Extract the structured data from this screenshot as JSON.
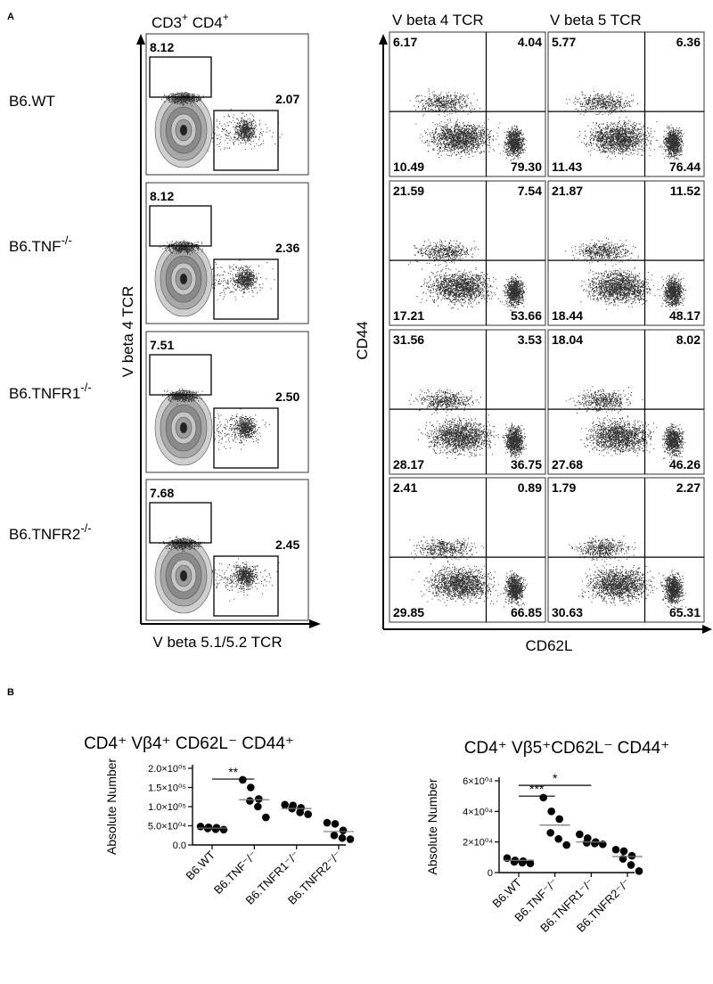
{
  "panel_a": {
    "letter": "A",
    "title_main": "CD3",
    "title_sup": "+",
    "title_main2": " CD4",
    "title_sup2": "+",
    "col_titles": [
      "V beta 4 TCR",
      "V beta 5 TCR"
    ],
    "row_labels": [
      {
        "base": "B6.WT",
        "sup": ""
      },
      {
        "base": "B6.TNF",
        "sup": "-/-"
      },
      {
        "base": "B6.TNFR1",
        "sup": "-/-"
      },
      {
        "base": "B6.TNFR2",
        "sup": "-/-"
      }
    ],
    "left_ylabel": "V beta 4 TCR",
    "left_xlabel": "V beta 5.1/5.2 TCR",
    "right_ylabel": "CD44",
    "right_xlabel": "CD62L",
    "gate_values": [
      {
        "upper": "8.12",
        "right": "2.07"
      },
      {
        "upper": "8.12",
        "right": "2.36"
      },
      {
        "upper": "7.51",
        "right": "2.50"
      },
      {
        "upper": "7.68",
        "right": "2.45"
      }
    ],
    "quadrants": [
      [
        {
          "ul": "6.17",
          "ur": "4.04",
          "ll": "10.49",
          "lr": "79.30"
        },
        {
          "ul": "5.77",
          "ur": "6.36",
          "ll": "11.43",
          "lr": "76.44"
        }
      ],
      [
        {
          "ul": "21.59",
          "ur": "7.54",
          "ll": "17.21",
          "lr": "53.66"
        },
        {
          "ul": "21.87",
          "ur": "11.52",
          "ll": "18.44",
          "lr": "48.17"
        }
      ],
      [
        {
          "ul": "31.56",
          "ur": "3.53",
          "ll": "28.17",
          "lr": "36.75"
        },
        {
          "ul": "18.04",
          "ur": "8.02",
          "ll": "27.68",
          "lr": "46.26"
        }
      ],
      [
        {
          "ul": "2.41",
          "ur": "0.89",
          "ll": "29.85",
          "lr": "66.85"
        },
        {
          "ul": "1.79",
          "ur": "2.27",
          "ll": "30.63",
          "lr": "65.31"
        }
      ]
    ]
  },
  "panel_b": {
    "letter": "B"
  },
  "chart_data": [
    {
      "type": "scatter",
      "title": "CD4⁺ Vβ4⁺ CD62L⁻ CD44⁺",
      "ylabel": "Absolute Number",
      "ylim": [
        0,
        200000
      ],
      "yticks": [
        {
          "value": 0,
          "label": "0.0"
        },
        {
          "value": 50000,
          "label": "5.0×10⁰⁴"
        },
        {
          "value": 100000,
          "label": "1.0×10⁰⁵"
        },
        {
          "value": 150000,
          "label": "1.5×10⁰⁵"
        },
        {
          "value": 200000,
          "label": "2.0×10⁰⁵"
        }
      ],
      "categories": [
        "B6.WT",
        "B6.TNF⁻/⁻",
        "B6.TNFR1⁻/⁻",
        "B6.TNFR2⁻/⁻"
      ],
      "points": [
        [
          48000,
          46000,
          45000,
          43000,
          41000,
          40000
        ],
        [
          170000,
          150000,
          120000,
          115000,
          100000,
          72000
        ],
        [
          105000,
          103000,
          97000,
          95000,
          85000,
          80000
        ],
        [
          58000,
          55000,
          38000,
          25000,
          18000,
          15000
        ]
      ],
      "medians": [
        44000,
        118000,
        95000,
        35000
      ],
      "significance": [
        {
          "from": 0,
          "to": 1,
          "label": "**",
          "y": 172000
        }
      ]
    },
    {
      "type": "scatter",
      "title": "CD4⁺ Vβ5⁺CD62L⁻ CD44⁺",
      "ylabel": "Absolute Number",
      "ylim": [
        0,
        60000
      ],
      "yticks": [
        {
          "value": 0,
          "label": "0"
        },
        {
          "value": 20000,
          "label": "2×10⁰⁴"
        },
        {
          "value": 40000,
          "label": "4×10⁰⁴"
        },
        {
          "value": 60000,
          "label": "6×10⁰⁴"
        }
      ],
      "categories": [
        "B6.WT",
        "B6.TNF⁻/⁻",
        "B6.TNFR1⁻/⁻",
        "B6.TNFR2⁻/⁻"
      ],
      "points": [
        [
          9500,
          8000,
          7500,
          7000,
          6500,
          6000
        ],
        [
          49000,
          40000,
          35000,
          26000,
          22000,
          18000
        ],
        [
          25000,
          22500,
          20000,
          19500,
          19000,
          18500
        ],
        [
          15000,
          14000,
          11000,
          9000,
          5000,
          1000
        ]
      ],
      "medians": [
        8000,
        31000,
        20000,
        10500
      ],
      "significance": [
        {
          "from": 0,
          "to": 1,
          "label": "***",
          "y": 50000
        },
        {
          "from": 0,
          "to": 2,
          "label": "*",
          "y": 57000
        }
      ]
    }
  ]
}
